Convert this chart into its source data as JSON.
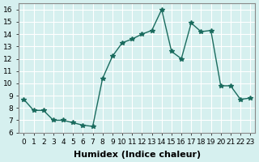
{
  "x": [
    0,
    1,
    2,
    3,
    4,
    5,
    6,
    7,
    8,
    9,
    10,
    11,
    12,
    13,
    14,
    15,
    16,
    17,
    18,
    19,
    20,
    21,
    22,
    23
  ],
  "y": [
    8.7,
    7.8,
    7.8,
    7.0,
    7.0,
    6.8,
    6.6,
    6.5,
    10.4,
    12.2,
    13.3,
    13.6,
    14.0,
    14.3,
    16.0,
    12.6,
    12.0,
    14.9,
    14.2,
    14.3,
    9.8,
    9.8,
    8.7,
    8.8
  ],
  "xtick_labels": [
    "0",
    "1",
    "2",
    "3",
    "4",
    "5",
    "6",
    "7",
    "8",
    "9",
    "10",
    "11",
    "12",
    "13",
    "14",
    "15",
    "16",
    "17",
    "18",
    "19",
    "20",
    "21",
    "22",
    "23"
  ],
  "ytick_labels": [
    "6",
    "7",
    "8",
    "9",
    "10",
    "11",
    "12",
    "13",
    "14",
    "15",
    "16"
  ],
  "yticks": [
    6,
    7,
    8,
    9,
    10,
    11,
    12,
    13,
    14,
    15,
    16
  ],
  "line_color": "#1a6b5e",
  "marker": "*",
  "marker_size": 4,
  "background_color": "#d6f0ef",
  "grid_color": "#ffffff",
  "xlabel": "Humidex (Indice chaleur)",
  "xlim": [
    -0.5,
    23.5
  ],
  "ylim": [
    6,
    16.5
  ],
  "xlabel_fontsize": 8,
  "tick_fontsize": 6.5
}
